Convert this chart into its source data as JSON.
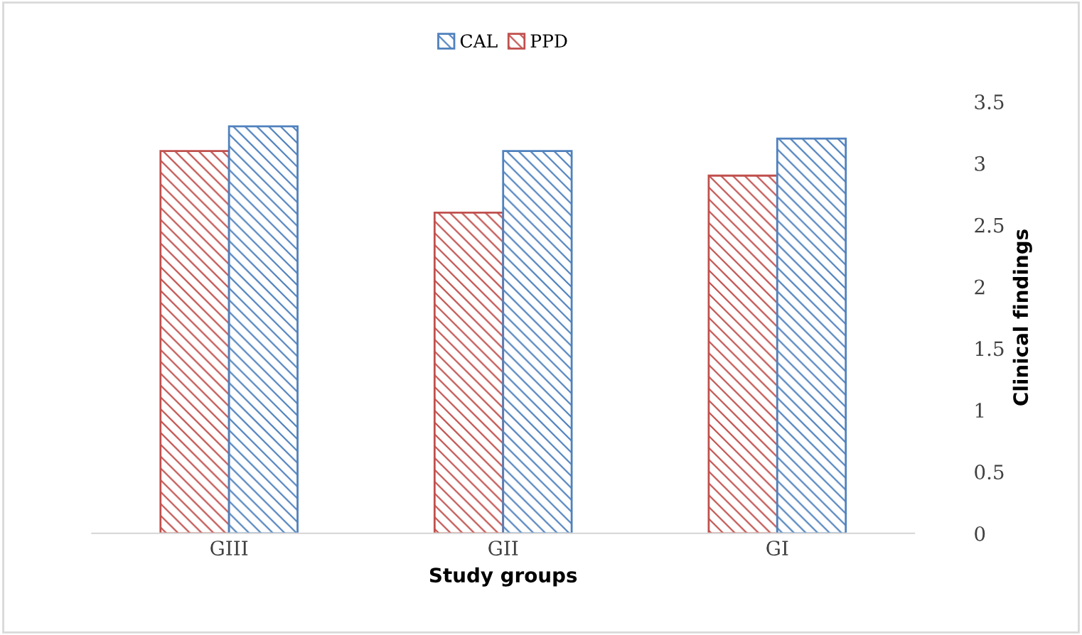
{
  "chart_data": {
    "type": "bar",
    "xlabel": "Study groups",
    "ylabel": "Clinical findings",
    "categories": [
      "GIII",
      "GII",
      "GI"
    ],
    "series": [
      {
        "name": "PPD",
        "color": "#c0504d",
        "values": [
          3.1,
          2.6,
          2.9
        ]
      },
      {
        "name": "CAL",
        "color": "#4f81bd",
        "values": [
          3.3,
          3.1,
          3.2
        ]
      }
    ],
    "ylim": [
      0,
      3.5
    ],
    "yticks": [
      0,
      0.5,
      1,
      1.5,
      2,
      2.5,
      3,
      3.5
    ],
    "grid": false,
    "legend": "top"
  }
}
